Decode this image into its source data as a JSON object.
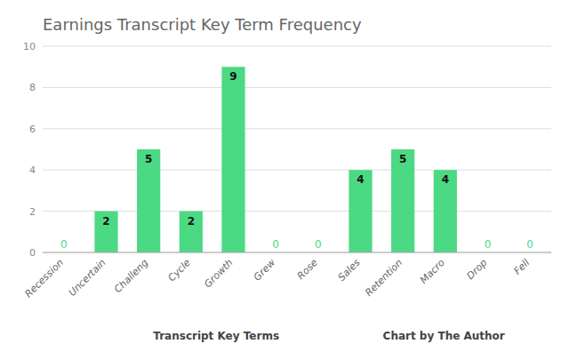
{
  "chart_data": {
    "type": "bar",
    "title": "Earnings Transcript Key Term Frequency",
    "xlabel": "Transcript Key Terms",
    "annotations": [
      "Chart by The Author"
    ],
    "categories": [
      "Recession",
      "Uncertain",
      "Challeng",
      "Cycle",
      "Growth",
      "Grew",
      "Rose",
      "Sales",
      "Retention",
      "Macro",
      "Drop",
      "Fell"
    ],
    "values": [
      0,
      2,
      5,
      2,
      9,
      0,
      0,
      4,
      5,
      4,
      0,
      0
    ],
    "color": "#4cd984",
    "ylim": [
      0,
      10
    ],
    "yticks": [
      0,
      2,
      4,
      6,
      8,
      10
    ],
    "grid": true,
    "data_labels": true
  }
}
